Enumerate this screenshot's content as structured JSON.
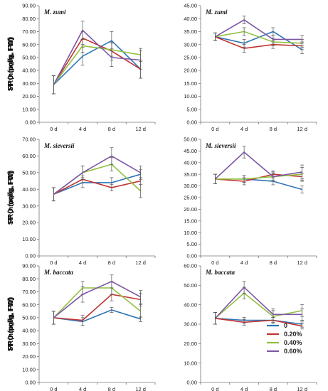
{
  "legend": {
    "entries": [
      {
        "label": "0",
        "color": "#2e75b6"
      },
      {
        "label": "0.20%",
        "color": "#c0332f"
      },
      {
        "label": "0.40%",
        "color": "#8fc13f"
      },
      {
        "label": "0.60%",
        "color": "#7e57a6"
      }
    ]
  },
  "chart_data": [
    {
      "type": "line",
      "title": "M. zumi",
      "ylabel": "SP (nmol/g, FW)",
      "categories": [
        "0 d",
        "4 d",
        "8 d",
        "12 d"
      ],
      "ylim": [
        0,
        90
      ],
      "ytick_step": 10,
      "ytick_decimals": 2,
      "series": [
        {
          "name": "0",
          "values": [
            29,
            51,
            63,
            41
          ],
          "errors": [
            7,
            7,
            7,
            7
          ]
        },
        {
          "name": "0.20%",
          "values": [
            29,
            65,
            55,
            41
          ],
          "errors": [
            7,
            5,
            7,
            7
          ]
        },
        {
          "name": "0.40%",
          "values": [
            29,
            59,
            56,
            52
          ],
          "errors": [
            7,
            5,
            5,
            5
          ]
        },
        {
          "name": "0.60%",
          "values": [
            29,
            71,
            50,
            48
          ],
          "errors": [
            7,
            7,
            7,
            7
          ]
        }
      ]
    },
    {
      "type": "line",
      "title": "M. zumi",
      "ylabel": "PRO (μg/g, FW)",
      "categories": [
        "0 d",
        "4 d",
        "8 d",
        "12 d"
      ],
      "ylim": [
        0,
        45
      ],
      "ytick_step": 5,
      "ytick_decimals": 2,
      "series": [
        {
          "name": "0",
          "values": [
            33,
            30.5,
            35,
            28
          ],
          "errors": [
            1.5,
            1.5,
            1.5,
            1.5
          ]
        },
        {
          "name": "0.20%",
          "values": [
            33,
            28.5,
            30,
            29.5
          ],
          "errors": [
            1.5,
            1.5,
            1.5,
            1.5
          ]
        },
        {
          "name": "0.40%",
          "values": [
            33,
            35,
            31,
            30.5
          ],
          "errors": [
            1.5,
            1.5,
            1.5,
            1.5
          ]
        },
        {
          "name": "0.60%",
          "values": [
            33,
            39.5,
            32,
            32
          ],
          "errors": [
            1.5,
            1.5,
            1.5,
            1.5
          ]
        }
      ]
    },
    {
      "type": "line",
      "title": "M. sieversii",
      "ylabel": "SP (nmol/g, FW)",
      "categories": [
        "0 d",
        "4 d",
        "8 d",
        "12 d"
      ],
      "ylim": [
        0,
        70
      ],
      "ytick_step": 10,
      "ytick_decimals": 2,
      "series": [
        {
          "name": "0",
          "values": [
            37,
            44,
            44,
            49
          ],
          "errors": [
            4,
            3,
            3,
            3
          ]
        },
        {
          "name": "0.20%",
          "values": [
            37,
            46,
            41,
            45
          ],
          "errors": [
            4,
            2,
            2,
            2
          ]
        },
        {
          "name": "0.40%",
          "values": [
            37,
            50,
            55,
            39
          ],
          "errors": [
            4,
            4,
            4,
            4
          ]
        },
        {
          "name": "0.60%",
          "values": [
            37,
            50,
            60,
            50
          ],
          "errors": [
            4,
            4,
            5,
            4
          ]
        }
      ]
    },
    {
      "type": "line",
      "title": "M. sieversii",
      "ylabel": "PRO (μg/g, FW)",
      "categories": [
        "0 d",
        "4 d",
        "8 d",
        "12 d"
      ],
      "ylim": [
        0,
        50
      ],
      "ytick_step": 5,
      "ytick_decimals": 2,
      "series": [
        {
          "name": "0",
          "values": [
            33,
            33,
            32,
            28.5
          ],
          "errors": [
            2,
            1.5,
            1.5,
            1.5
          ]
        },
        {
          "name": "0.20%",
          "values": [
            33,
            32,
            35,
            34
          ],
          "errors": [
            2,
            1.5,
            1.5,
            1.5
          ]
        },
        {
          "name": "0.40%",
          "values": [
            33,
            33,
            34,
            35
          ],
          "errors": [
            2,
            1.5,
            1.5,
            3
          ]
        },
        {
          "name": "0.60%",
          "values": [
            33,
            44.5,
            34,
            36
          ],
          "errors": [
            2,
            2.5,
            2,
            3
          ]
        }
      ]
    },
    {
      "type": "line",
      "title": "M. baccata",
      "ylabel": "SP (nmol/g, FW)",
      "categories": [
        "0 d",
        "4 d",
        "8 d",
        "12 d"
      ],
      "ylim": [
        0,
        90
      ],
      "ytick_step": 10,
      "ytick_decimals": 2,
      "series": [
        {
          "name": "0",
          "values": [
            50,
            47,
            56,
            49
          ],
          "errors": [
            5,
            3,
            2,
            2
          ]
        },
        {
          "name": "0.20%",
          "values": [
            50,
            48,
            68,
            64
          ],
          "errors": [
            5,
            4,
            5,
            5
          ]
        },
        {
          "name": "0.40%",
          "values": [
            50,
            73,
            73,
            55
          ],
          "errors": [
            5,
            5,
            5,
            5
          ]
        },
        {
          "name": "0.60%",
          "values": [
            50,
            68,
            78,
            66
          ],
          "errors": [
            5,
            6,
            5,
            5
          ]
        }
      ]
    },
    {
      "type": "line",
      "title": "M. baccata",
      "ylabel": "PRO (μg/g, FW)",
      "categories": [
        "0 d",
        "4 d",
        "8 d",
        "12 d"
      ],
      "ylim": [
        0,
        60
      ],
      "ytick_step": 10,
      "ytick_decimals": 2,
      "series": [
        {
          "name": "0",
          "values": [
            33,
            32,
            32,
            30
          ],
          "errors": [
            3,
            1.5,
            1.5,
            1.5
          ]
        },
        {
          "name": "0.20%",
          "values": [
            33,
            31,
            32,
            29
          ],
          "errors": [
            3,
            1.5,
            1.5,
            1.5
          ]
        },
        {
          "name": "0.40%",
          "values": [
            33,
            46,
            34,
            37
          ],
          "errors": [
            3,
            3,
            3,
            3
          ]
        },
        {
          "name": "0.60%",
          "values": [
            33,
            49,
            35,
            35
          ],
          "errors": [
            3,
            3,
            3,
            3
          ]
        }
      ]
    }
  ]
}
